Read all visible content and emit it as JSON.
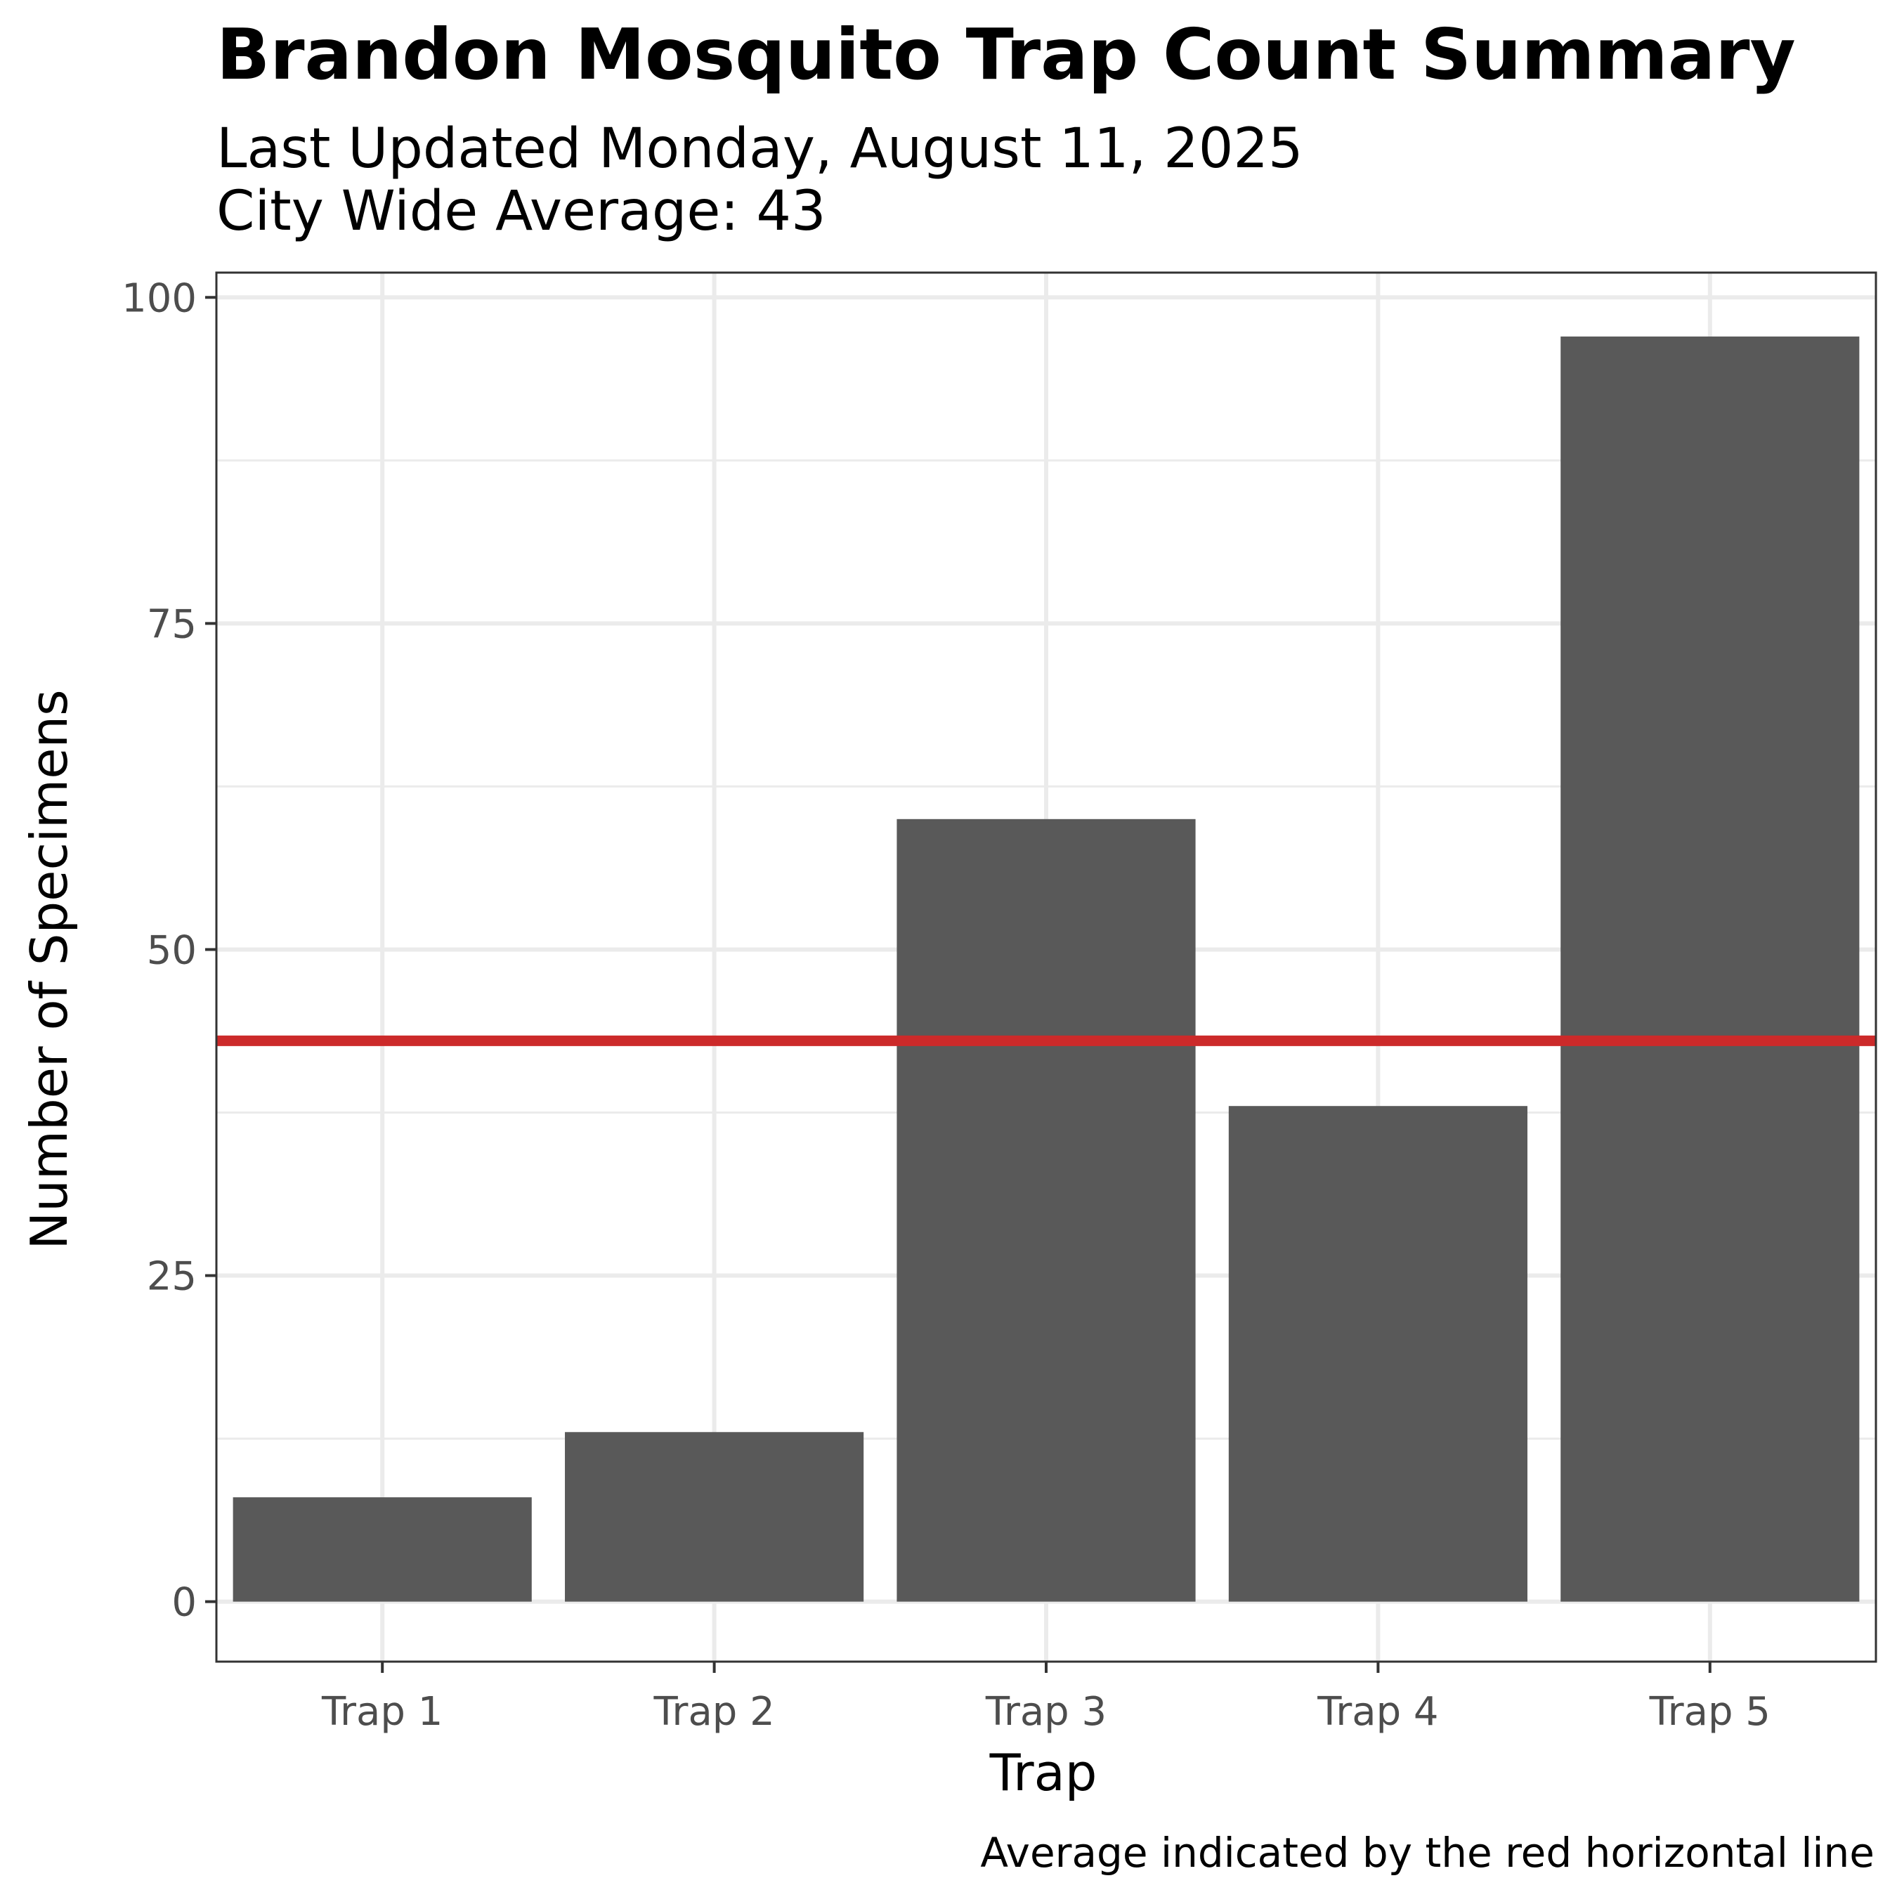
{
  "chart_data": {
    "type": "bar",
    "title": "Brandon Mosquito Trap Count Summary",
    "subtitle_lines": [
      "Last Updated Monday, August 11, 2025",
      "City Wide Average: 43"
    ],
    "xlabel": "Trap",
    "ylabel": "Number of Specimens",
    "caption": "Average indicated by the red horizontal line",
    "categories": [
      "Trap 1",
      "Trap 2",
      "Trap 3",
      "Trap 4",
      "Trap 5"
    ],
    "values": [
      8,
      13,
      60,
      38,
      97
    ],
    "reference_line": {
      "value": 43,
      "color": "#cc2a2a"
    },
    "ylim": [
      -4.6,
      101.9
    ],
    "yticks": [
      0,
      25,
      50,
      75,
      100
    ],
    "grid": true,
    "bar_color": "#595959",
    "grid_color": "#ebebeb"
  }
}
